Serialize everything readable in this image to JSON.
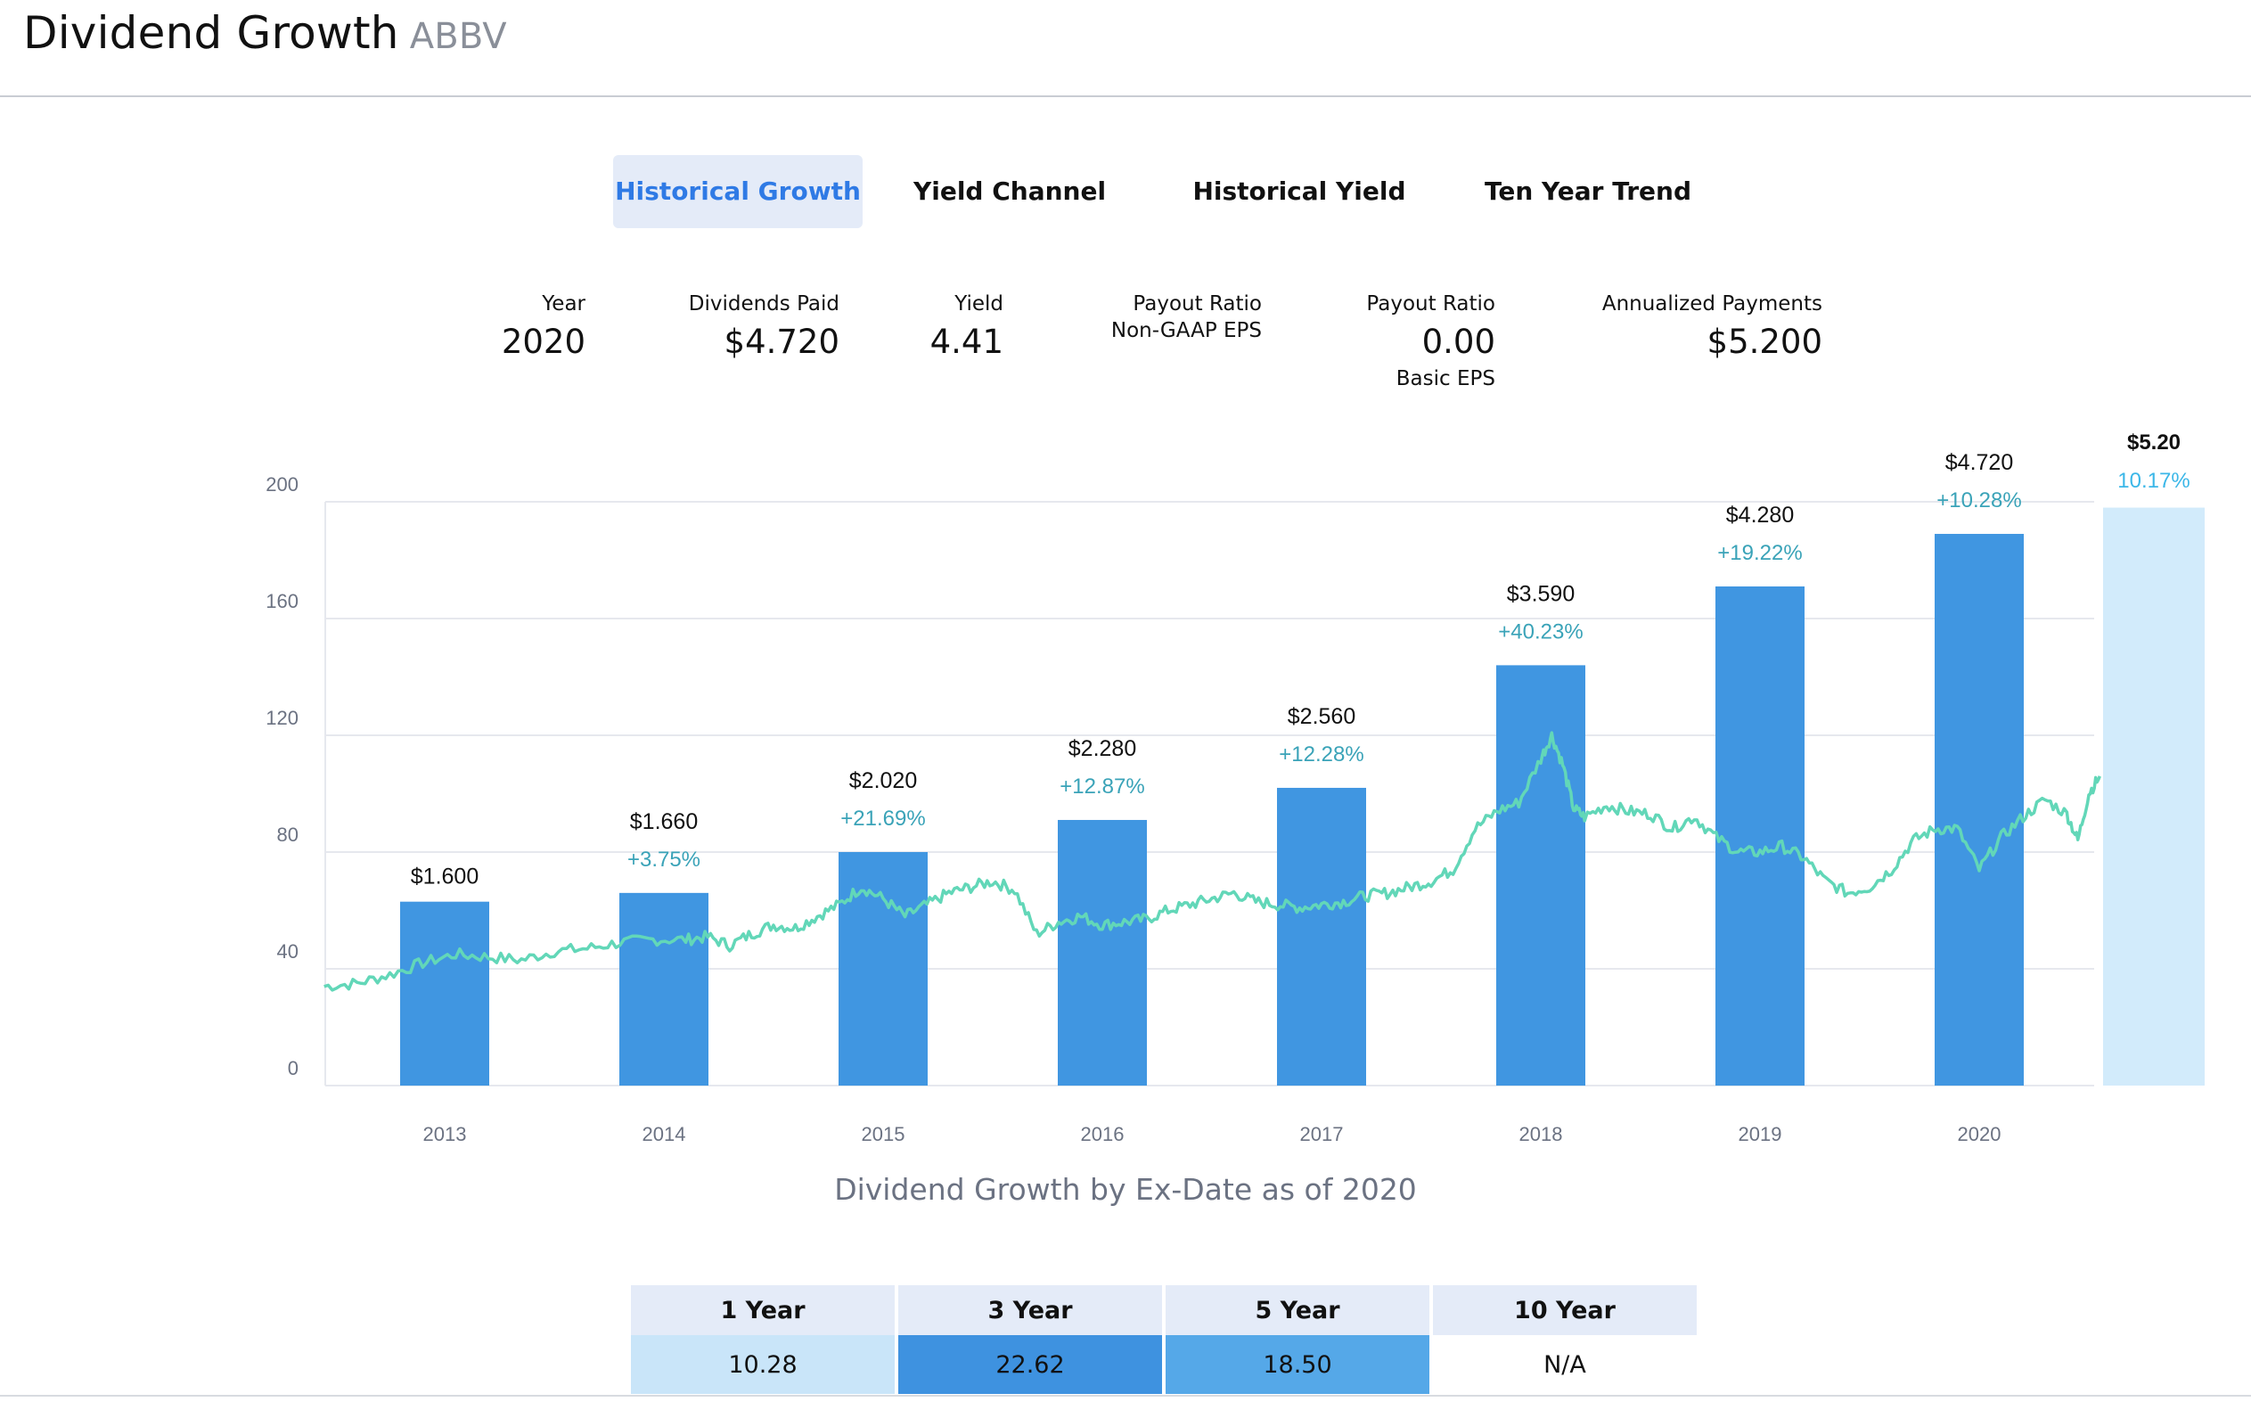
{
  "header": {
    "title": "Dividend Growth",
    "ticker": "ABBV"
  },
  "tabs": [
    {
      "label": "Historical Growth",
      "active": true
    },
    {
      "label": "Yield Channel",
      "active": false
    },
    {
      "label": "Historical Yield",
      "active": false
    },
    {
      "label": "Ten Year Trend",
      "active": false
    }
  ],
  "stats": {
    "year": {
      "label": "Year",
      "value": "2020"
    },
    "dividends_paid": {
      "label": "Dividends Paid",
      "value": "$4.720"
    },
    "yield": {
      "label": "Yield",
      "value": "4.41"
    },
    "payout_nongaap": {
      "label": "Payout Ratio",
      "sublabel": "Non-GAAP EPS",
      "value": ""
    },
    "payout_basic": {
      "label": "Payout Ratio",
      "value": "0.00",
      "sublabel": "Basic EPS"
    },
    "annualized": {
      "label": "Annualized Payments",
      "value": "$5.200"
    }
  },
  "colors": {
    "bar": "#4096e1",
    "projected_bar": "#d2ebfb",
    "price_line": "#62d7b8",
    "growth_label": "#3aa3b8",
    "projected_growth_label": "#3bb7e8",
    "grid": "#e6e8ee",
    "axis_text": "#6b7282",
    "active_tab": "#2f7ae5"
  },
  "chart_data": {
    "type": "bar",
    "caption": "Dividend Growth by Ex-Date as of 2020",
    "ylim": [
      0,
      200
    ],
    "yticks": [
      0,
      40,
      80,
      120,
      160,
      200
    ],
    "grid": true,
    "categories": [
      "2013",
      "2014",
      "2015",
      "2016",
      "2017",
      "2018",
      "2019",
      "2020"
    ],
    "series": [
      {
        "values": [
          63,
          66,
          80,
          91,
          102,
          144,
          171,
          189
        ],
        "dividend_labels": [
          "$1.600",
          "$1.660",
          "$2.020",
          "$2.280",
          "$2.560",
          "$3.590",
          "$4.280",
          "$4.720"
        ],
        "growth_labels": [
          "",
          "+3.75%",
          "+21.69%",
          "+12.87%",
          "+12.28%",
          "+40.23%",
          "+19.22%",
          "+10.28%"
        ]
      }
    ],
    "projected": {
      "dividend_label": "$5.20",
      "growth_label": "10.17%",
      "value": 198
    },
    "price_line": {
      "x_start": 2012.45,
      "x_end": 2020.55,
      "points": [
        [
          2012.45,
          34
        ],
        [
          2012.6,
          35
        ],
        [
          2012.75,
          38
        ],
        [
          2012.9,
          42
        ],
        [
          2013.05,
          45
        ],
        [
          2013.2,
          44
        ],
        [
          2013.35,
          43
        ],
        [
          2013.5,
          46
        ],
        [
          2013.65,
          47
        ],
        [
          2013.8,
          49
        ],
        [
          2013.95,
          50
        ],
        [
          2014.1,
          50
        ],
        [
          2014.2,
          51
        ],
        [
          2014.3,
          48
        ],
        [
          2014.4,
          52
        ],
        [
          2014.5,
          55
        ],
        [
          2014.6,
          54
        ],
        [
          2014.7,
          58
        ],
        [
          2014.8,
          62
        ],
        [
          2014.9,
          68
        ],
        [
          2015.0,
          64
        ],
        [
          2015.1,
          58
        ],
        [
          2015.2,
          62
        ],
        [
          2015.3,
          66
        ],
        [
          2015.4,
          68
        ],
        [
          2015.5,
          70
        ],
        [
          2015.6,
          67
        ],
        [
          2015.7,
          52
        ],
        [
          2015.8,
          56
        ],
        [
          2015.9,
          58
        ],
        [
          2016.0,
          55
        ],
        [
          2016.1,
          56
        ],
        [
          2016.2,
          57
        ],
        [
          2016.3,
          60
        ],
        [
          2016.4,
          62
        ],
        [
          2016.5,
          64
        ],
        [
          2016.6,
          66
        ],
        [
          2016.7,
          63
        ],
        [
          2016.8,
          62
        ],
        [
          2016.9,
          61
        ],
        [
          2017.0,
          62
        ],
        [
          2017.1,
          63
        ],
        [
          2017.2,
          65
        ],
        [
          2017.3,
          66
        ],
        [
          2017.4,
          68
        ],
        [
          2017.5,
          70
        ],
        [
          2017.6,
          74
        ],
        [
          2017.7,
          88
        ],
        [
          2017.8,
          94
        ],
        [
          2017.9,
          97
        ],
        [
          2018.0,
          112
        ],
        [
          2018.05,
          120
        ],
        [
          2018.1,
          110
        ],
        [
          2018.15,
          95
        ],
        [
          2018.2,
          92
        ],
        [
          2018.3,
          96
        ],
        [
          2018.4,
          94
        ],
        [
          2018.5,
          93
        ],
        [
          2018.6,
          88
        ],
        [
          2018.7,
          92
        ],
        [
          2018.8,
          85
        ],
        [
          2018.9,
          80
        ],
        [
          2019.0,
          80
        ],
        [
          2019.1,
          82
        ],
        [
          2019.2,
          78
        ],
        [
          2019.3,
          70
        ],
        [
          2019.4,
          66
        ],
        [
          2019.5,
          68
        ],
        [
          2019.6,
          74
        ],
        [
          2019.7,
          84
        ],
        [
          2019.8,
          88
        ],
        [
          2019.9,
          88
        ],
        [
          2020.0,
          74
        ],
        [
          2020.1,
          85
        ],
        [
          2020.2,
          92
        ],
        [
          2020.3,
          98
        ],
        [
          2020.4,
          93
        ],
        [
          2020.45,
          84
        ],
        [
          2020.5,
          100
        ],
        [
          2020.55,
          106
        ]
      ]
    }
  },
  "growth_table": {
    "headers": [
      "1 Year",
      "3 Year",
      "5 Year",
      "10 Year"
    ],
    "values": [
      "10.28",
      "22.62",
      "18.50",
      "N/A"
    ],
    "cell_colors": [
      "#c9e5f9",
      "#3e92e0",
      "#55a8e8",
      "#ffffff"
    ]
  }
}
